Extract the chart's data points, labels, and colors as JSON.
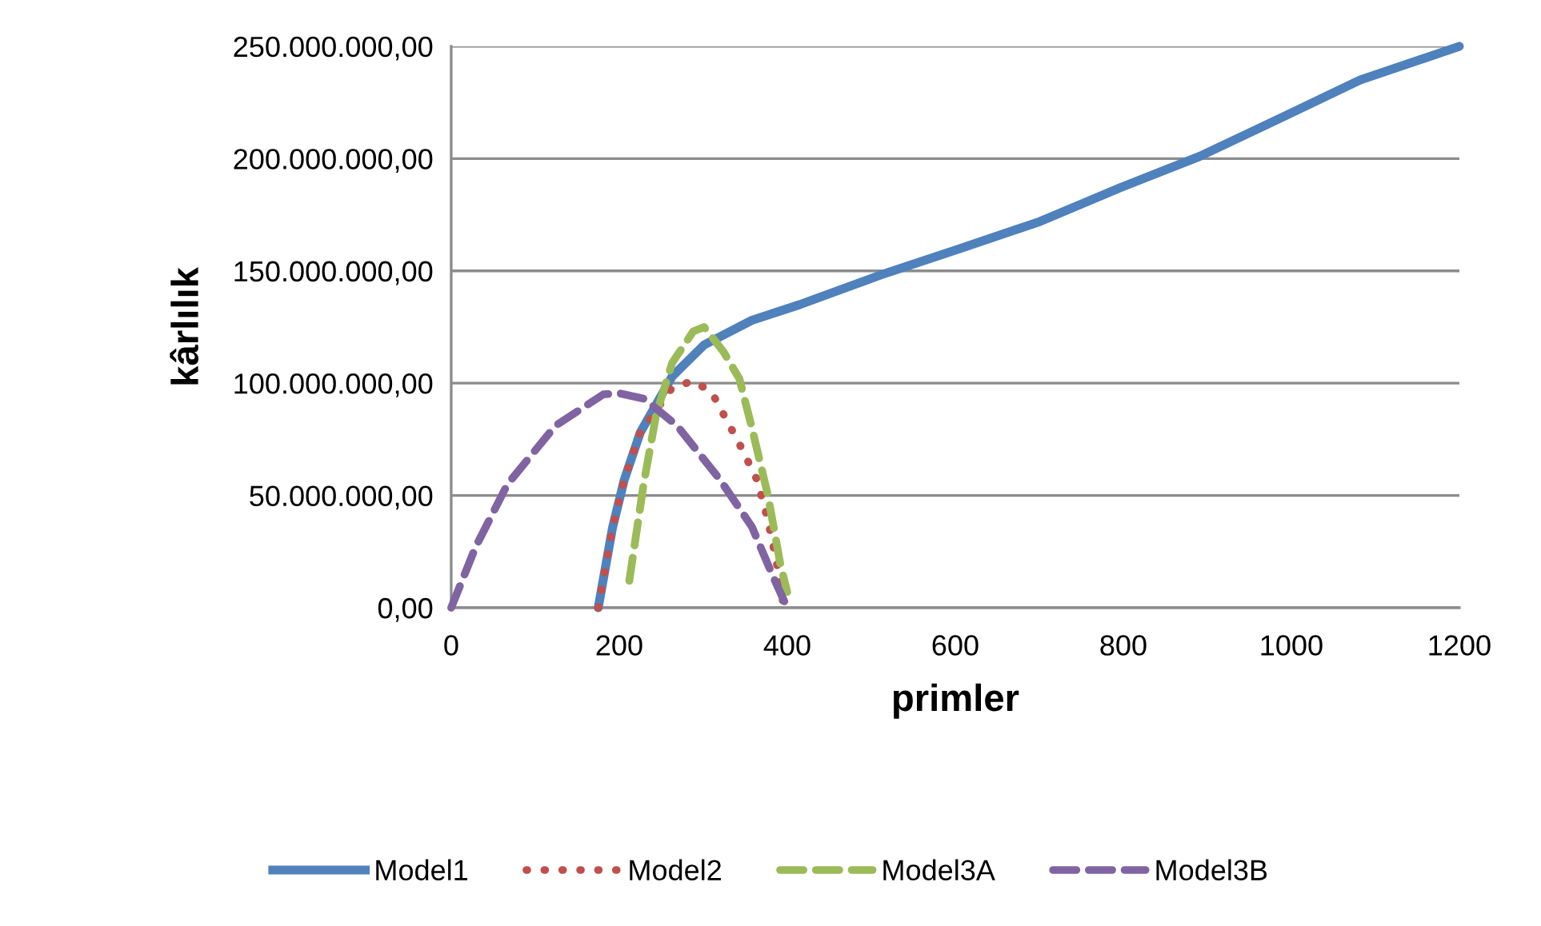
{
  "chart_data": {
    "type": "line",
    "xlabel": "primler",
    "ylabel": "kârlılık",
    "xlim": [
      0,
      1200
    ],
    "xticks": [
      0,
      200,
      400,
      600,
      800,
      1000,
      1200
    ],
    "ylim": [
      0,
      250000000
    ],
    "yticks": [
      {
        "value": 0,
        "label": "0,00"
      },
      {
        "value": 50000000,
        "label": "50.000.000,00"
      },
      {
        "value": 100000000,
        "label": "100.000.000,00"
      },
      {
        "value": 150000000,
        "label": "150.000.000,00"
      },
      {
        "value": 200000000,
        "label": "200.000.000,00"
      },
      {
        "value": 250000000,
        "label": "250.000.000,00"
      }
    ],
    "grid": "y",
    "legend": "bottom",
    "marker": "none",
    "series": [
      {
        "name": "Model1",
        "color": "#4f81bd",
        "line_style": "solid",
        "x": [
          175,
          192,
          206,
          225,
          263,
          301,
          358,
          415,
          510,
          606,
          701,
          796,
          891,
          987,
          1082,
          1200
        ],
        "values": [
          0,
          35600000,
          57000000,
          78000000,
          103000000,
          117000000,
          128000000,
          135000000,
          148000000,
          160000000,
          172000000,
          187000000,
          201000000,
          218000000,
          235000000,
          250000000
        ]
      },
      {
        "name": "Model2",
        "color": "#c0504d",
        "line_style": "dotted",
        "x": [
          175,
          192,
          206,
          225,
          263,
          288,
          310,
          343,
          364,
          377,
          387,
          396
        ],
        "values": [
          0,
          35600000,
          57000000,
          78000000,
          98000000,
          101000000,
          96000000,
          73000000,
          57000000,
          39000000,
          21000000,
          0
        ]
      },
      {
        "name": "Model3A",
        "color": "#9bbb59",
        "line_style": "dashed",
        "x": [
          212,
          229,
          244,
          263,
          288,
          301,
          324,
          343,
          358,
          377,
          392,
          400
        ],
        "values": [
          12000000,
          55000000,
          86000000,
          109000000,
          123000000,
          125000000,
          114000000,
          102000000,
          80000000,
          50000000,
          19000000,
          7000000
        ]
      },
      {
        "name": "Model3B",
        "color": "#8064a2",
        "line_style": "dashed",
        "x": [
          0,
          29,
          67,
          124,
          181,
          200,
          230,
          269,
          320,
          358,
          383,
          400
        ],
        "values": [
          0,
          27000000,
          55000000,
          81000000,
          95000000,
          95500000,
          93000000,
          81000000,
          57000000,
          36000000,
          14000000,
          0
        ]
      }
    ]
  }
}
